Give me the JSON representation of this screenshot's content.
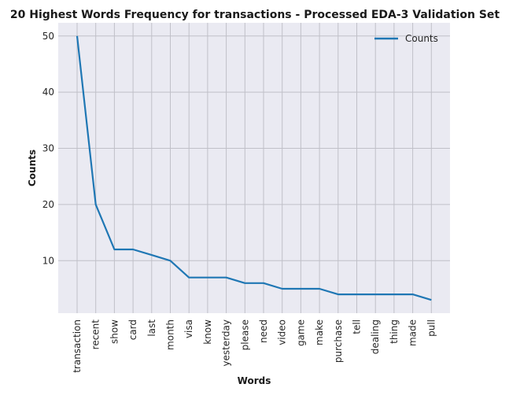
{
  "chart_data": {
    "type": "line",
    "title": "20 Highest Words Frequency for transactions - Processed EDA-3 Validation Set",
    "xlabel": "Words",
    "ylabel": "Counts",
    "categories": [
      "transaction",
      "recent",
      "show",
      "card",
      "last",
      "month",
      "visa",
      "know",
      "yesterday",
      "please",
      "need",
      "video",
      "game",
      "make",
      "purchase",
      "tell",
      "dealing",
      "thing",
      "made",
      "pull"
    ],
    "series": [
      {
        "name": "Counts",
        "values": [
          50,
          20,
          12,
          12,
          11,
          10,
          7,
          7,
          7,
          6,
          6,
          5,
          5,
          5,
          4,
          4,
          4,
          4,
          4,
          3
        ],
        "color": "#1f77b4"
      }
    ],
    "yticks": [
      10,
      20,
      30,
      40,
      50
    ],
    "ylim": [
      0.65,
      52.35
    ],
    "grid": true,
    "legend_position": "top-right",
    "background_color": "#eaeaf2",
    "grid_color": "#c0c0c8"
  }
}
